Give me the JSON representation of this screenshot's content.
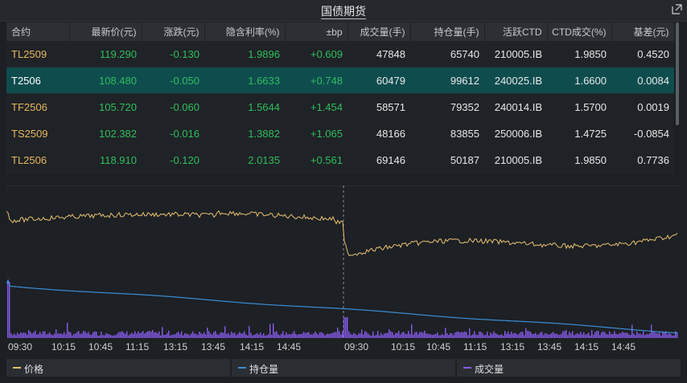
{
  "title": "国债期货",
  "columns": [
    "合约",
    "最新价(元)",
    "涨跌(元)",
    "隐含利率(%)",
    "±bp",
    "成交量(手)",
    "持仓量(手)",
    "活跃CTD",
    "CTD成交(%)",
    "基差(元)"
  ],
  "rows": [
    [
      "TL2509",
      "119.290",
      "-0.130",
      "1.9896",
      "+0.609",
      "47848",
      "65740",
      "210005.IB",
      "1.9850",
      "0.4520"
    ],
    [
      "T2506",
      "108.480",
      "-0.050",
      "1.6633",
      "+0.748",
      "60479",
      "99612",
      "240025.IB",
      "1.6600",
      "0.0084"
    ],
    [
      "TF2506",
      "105.720",
      "-0.060",
      "1.5644",
      "+1.454",
      "58571",
      "79352",
      "240014.IB",
      "1.5700",
      "0.0019"
    ],
    [
      "TS2509",
      "102.382",
      "-0.016",
      "1.3882",
      "+1.065",
      "48166",
      "83855",
      "250006.IB",
      "1.4725",
      "-0.0854"
    ],
    [
      "TL2506",
      "118.910",
      "-0.120",
      "2.0135",
      "+0.561",
      "69146",
      "50187",
      "210005.IB",
      "1.9850",
      "0.7736"
    ]
  ],
  "selected_row": 1,
  "x_ticks": [
    "09:30",
    "10:15",
    "10:45",
    "11:15",
    "13:15",
    "13:45",
    "14:15",
    "14:45",
    "09:30",
    "10:15",
    "10:45",
    "11:15",
    "13:15",
    "13:45",
    "14:15",
    "14:45"
  ],
  "legend": [
    {
      "label": "价格",
      "color": "#e8c070"
    },
    {
      "label": "持仓量",
      "color": "#3a8fd8"
    },
    {
      "label": "成交量",
      "color": "#8a5cf0"
    }
  ],
  "colors": {
    "price": "#e8c070",
    "oi": "#3a8fd8",
    "volume": "#8a5cf0",
    "selected": "#0f4c4e",
    "up": "#2fbf5c"
  }
}
